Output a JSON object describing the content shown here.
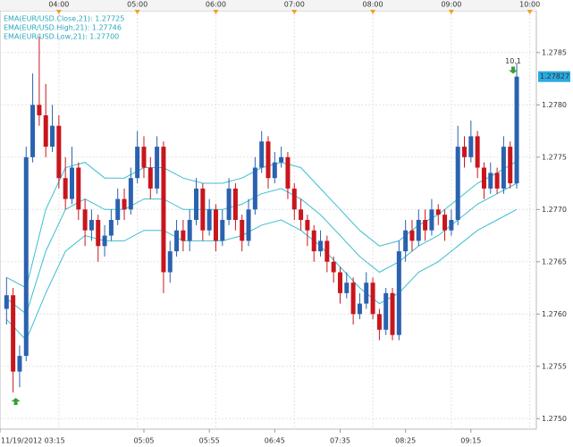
{
  "chart_data": {
    "type": "candlestick",
    "x": [
      "03:20",
      "03:25",
      "03:30",
      "03:35",
      "03:40",
      "03:45",
      "03:50",
      "03:55",
      "04:00",
      "04:05",
      "04:10",
      "04:15",
      "04:20",
      "04:25",
      "04:30",
      "04:35",
      "04:40",
      "04:45",
      "04:50",
      "04:55",
      "05:00",
      "05:05",
      "05:10",
      "05:15",
      "05:20",
      "05:25",
      "05:30",
      "05:35",
      "05:40",
      "05:45",
      "05:50",
      "05:55",
      "06:00",
      "06:05",
      "06:10",
      "06:15",
      "06:20",
      "06:25",
      "06:30",
      "06:35",
      "06:40",
      "06:45",
      "06:50",
      "06:55",
      "07:00",
      "07:05",
      "07:10",
      "07:15",
      "07:20",
      "07:25",
      "07:30",
      "07:35",
      "07:40",
      "07:45",
      "07:50",
      "07:55",
      "08:00",
      "08:05",
      "08:10",
      "08:15",
      "08:20",
      "08:25",
      "08:30",
      "08:35",
      "08:40",
      "08:45",
      "08:50",
      "08:55",
      "09:00",
      "09:05",
      "09:10",
      "09:15",
      "09:20",
      "09:25",
      "09:30",
      "09:35",
      "09:40",
      "09:45",
      "09:50"
    ],
    "open": [
      1.27605,
      1.27618,
      1.27545,
      1.2756,
      1.2775,
      1.278,
      1.2779,
      1.2776,
      1.2778,
      1.2773,
      1.2771,
      1.2774,
      1.277,
      1.2768,
      1.2769,
      1.27665,
      1.27675,
      1.2769,
      1.2771,
      1.277,
      1.2773,
      1.2776,
      1.2774,
      1.2772,
      1.2776,
      1.2764,
      1.2766,
      1.2768,
      1.2767,
      1.2769,
      1.2772,
      1.2768,
      1.277,
      1.2767,
      1.2769,
      1.2772,
      1.2769,
      1.2767,
      1.277,
      1.2774,
      1.27765,
      1.2773,
      1.27745,
      1.2775,
      1.2772,
      1.277,
      1.2769,
      1.2768,
      1.2766,
      1.2767,
      1.2765,
      1.2764,
      1.2762,
      1.2763,
      1.276,
      1.2761,
      1.2763,
      1.276,
      1.27585,
      1.2762,
      1.2758,
      1.2766,
      1.2768,
      1.2767,
      1.2769,
      1.2768,
      1.277,
      1.27695,
      1.2768,
      1.2769,
      1.2776,
      1.2775,
      1.2777,
      1.2774,
      1.2772,
      1.27735,
      1.2772,
      1.2776,
      1.27725
    ],
    "high": [
      1.27635,
      1.27625,
      1.2757,
      1.2776,
      1.2783,
      1.27865,
      1.2782,
      1.278,
      1.2779,
      1.2775,
      1.2776,
      1.27745,
      1.2771,
      1.277,
      1.27695,
      1.27685,
      1.277,
      1.2772,
      1.2772,
      1.2774,
      1.27775,
      1.2777,
      1.2775,
      1.2777,
      1.27765,
      1.2767,
      1.2769,
      1.2769,
      1.277,
      1.2773,
      1.27725,
      1.2771,
      1.27705,
      1.277,
      1.2773,
      1.27725,
      1.27695,
      1.2771,
      1.2775,
      1.27775,
      1.2777,
      1.27755,
      1.2776,
      1.27755,
      1.27725,
      1.2771,
      1.27695,
      1.27685,
      1.2768,
      1.27675,
      1.27655,
      1.27645,
      1.2764,
      1.27635,
      1.2762,
      1.2764,
      1.27635,
      1.27605,
      1.27625,
      1.27625,
      1.2767,
      1.2769,
      1.2769,
      1.277,
      1.277,
      1.2771,
      1.27705,
      1.277,
      1.277,
      1.2778,
      1.2777,
      1.27785,
      1.27775,
      1.27745,
      1.27745,
      1.2774,
      1.2777,
      1.27765,
      1.2784
    ],
    "low": [
      1.2759,
      1.27525,
      1.2753,
      1.27555,
      1.27745,
      1.2778,
      1.2775,
      1.27755,
      1.2772,
      1.277,
      1.27705,
      1.2769,
      1.27665,
      1.2767,
      1.2765,
      1.27655,
      1.2767,
      1.27685,
      1.2769,
      1.27695,
      1.27725,
      1.2773,
      1.2771,
      1.27715,
      1.2762,
      1.2763,
      1.27655,
      1.2766,
      1.2766,
      1.27685,
      1.2767,
      1.27675,
      1.2766,
      1.27665,
      1.27685,
      1.2768,
      1.2766,
      1.27665,
      1.27695,
      1.27735,
      1.2772,
      1.27725,
      1.2774,
      1.2771,
      1.2769,
      1.2768,
      1.27665,
      1.2765,
      1.27655,
      1.2764,
      1.2763,
      1.2761,
      1.27615,
      1.2759,
      1.27595,
      1.27605,
      1.27595,
      1.27575,
      1.2758,
      1.27575,
      1.27575,
      1.2765,
      1.2766,
      1.27665,
      1.2767,
      1.27675,
      1.27685,
      1.2767,
      1.27675,
      1.27685,
      1.2774,
      1.27745,
      1.2773,
      1.2771,
      1.27715,
      1.27715,
      1.27715,
      1.2772,
      1.2772
    ],
    "close": [
      1.27618,
      1.27545,
      1.2756,
      1.2775,
      1.278,
      1.2779,
      1.2776,
      1.2778,
      1.2773,
      1.2771,
      1.2774,
      1.277,
      1.2768,
      1.2769,
      1.27665,
      1.27675,
      1.2769,
      1.2771,
      1.277,
      1.2773,
      1.2776,
      1.2774,
      1.2772,
      1.2776,
      1.2764,
      1.2766,
      1.2768,
      1.2767,
      1.2769,
      1.2772,
      1.2768,
      1.277,
      1.2767,
      1.2769,
      1.2772,
      1.2769,
      1.2767,
      1.277,
      1.2774,
      1.27765,
      1.2773,
      1.27745,
      1.2775,
      1.2772,
      1.277,
      1.2769,
      1.2768,
      1.2766,
      1.2767,
      1.2765,
      1.2764,
      1.2762,
      1.2763,
      1.276,
      1.2761,
      1.2763,
      1.276,
      1.27585,
      1.2762,
      1.2758,
      1.2766,
      1.2768,
      1.2767,
      1.2769,
      1.2768,
      1.277,
      1.27695,
      1.2768,
      1.2769,
      1.2776,
      1.2775,
      1.2777,
      1.2774,
      1.2772,
      1.27735,
      1.2772,
      1.2776,
      1.27725,
      1.27827
    ],
    "up_color": "#2a62b0",
    "down_color": "#c8161d",
    "indicators": [
      {
        "name": "EMA(EUR/USD.Close,21): 1.27725",
        "color": "#3cbfd0",
        "x": [
          "03:20",
          "03:35",
          "03:50",
          "04:05",
          "04:20",
          "04:35",
          "04:50",
          "05:05",
          "05:20",
          "05:35",
          "05:50",
          "06:05",
          "06:20",
          "06:35",
          "06:50",
          "07:05",
          "07:20",
          "07:35",
          "07:50",
          "08:05",
          "08:20",
          "08:35",
          "08:50",
          "09:05",
          "09:20",
          "09:35",
          "09:50"
        ],
        "values": [
          1.27615,
          1.276,
          1.2766,
          1.277,
          1.2771,
          1.277,
          1.277,
          1.2771,
          1.2771,
          1.277,
          1.277,
          1.277,
          1.27705,
          1.27715,
          1.2772,
          1.2771,
          1.27695,
          1.27675,
          1.27655,
          1.2764,
          1.2765,
          1.27665,
          1.27675,
          1.2769,
          1.27705,
          1.27715,
          1.27725
        ]
      },
      {
        "name": "EMA(EUR/USD.High,21): 1.27746",
        "color": "#3cbfd0",
        "x": [
          "03:20",
          "03:35",
          "03:50",
          "04:05",
          "04:20",
          "04:35",
          "04:50",
          "05:05",
          "05:20",
          "05:35",
          "05:50",
          "06:05",
          "06:20",
          "06:35",
          "06:50",
          "07:05",
          "07:20",
          "07:35",
          "07:50",
          "08:05",
          "08:20",
          "08:35",
          "08:50",
          "09:05",
          "09:20",
          "09:35",
          "09:50"
        ],
        "values": [
          1.27635,
          1.27625,
          1.277,
          1.2774,
          1.27745,
          1.2773,
          1.2773,
          1.2774,
          1.2774,
          1.2773,
          1.27725,
          1.27725,
          1.2773,
          1.2774,
          1.27745,
          1.2774,
          1.2772,
          1.277,
          1.2768,
          1.27665,
          1.2767,
          1.27685,
          1.27695,
          1.2771,
          1.27725,
          1.27735,
          1.27746
        ]
      },
      {
        "name": "EMA(EUR/USD.Low,21): 1.27700",
        "color": "#3cbfd0",
        "x": [
          "03:20",
          "03:35",
          "03:50",
          "04:05",
          "04:20",
          "04:35",
          "04:50",
          "05:05",
          "05:20",
          "05:35",
          "05:50",
          "06:05",
          "06:20",
          "06:35",
          "06:50",
          "07:05",
          "07:20",
          "07:35",
          "07:50",
          "08:05",
          "08:20",
          "08:35",
          "08:50",
          "09:05",
          "09:20",
          "09:35",
          "09:50"
        ],
        "values": [
          1.27595,
          1.27575,
          1.2762,
          1.2766,
          1.27675,
          1.2767,
          1.2767,
          1.2768,
          1.2768,
          1.2767,
          1.2767,
          1.2767,
          1.27675,
          1.27685,
          1.2769,
          1.2768,
          1.27665,
          1.27645,
          1.27625,
          1.2761,
          1.2762,
          1.2764,
          1.2765,
          1.27665,
          1.2768,
          1.2769,
          1.277
        ]
      }
    ],
    "annotation": "10.1",
    "xlim": [
      "03:15",
      "10:05"
    ],
    "xticks_top": [
      "04:00",
      "05:00",
      "06:00",
      "07:00",
      "08:00",
      "09:00",
      "10:00"
    ],
    "xticks_bottom": [
      {
        "value": "03:15",
        "label": "11/19/2012 03:15"
      },
      "05:05",
      "05:55",
      "06:45",
      "07:35",
      "08:25",
      "09:15"
    ],
    "ylim": [
      1.2749,
      1.2789
    ],
    "yticks": [
      {
        "value": 1.275,
        "label": "1.2750"
      },
      1.2755,
      {
        "value": 1.276,
        "label": "1.2760"
      },
      1.2765,
      {
        "value": 1.277,
        "label": "1.2770"
      },
      1.2775,
      {
        "value": 1.278,
        "label": "1.2780"
      },
      1.2785
    ],
    "grid": true
  }
}
